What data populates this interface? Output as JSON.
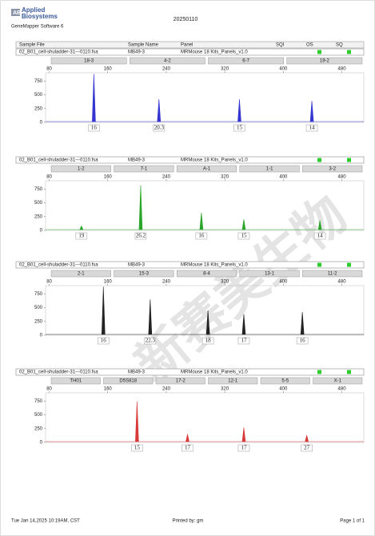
{
  "header": {
    "brand_line1": "Applied",
    "brand_line2": "Biosystems",
    "software": "GeneMapper Software 6",
    "date": "20250110"
  },
  "columns": [
    "Sample File",
    "Sample Name",
    "Panel",
    "SQI",
    "OS",
    "SQ"
  ],
  "watermark": "新赛美生物",
  "chart_data": [
    {
      "type": "peaks",
      "sample_file": "02_B01_cell-shuladder-31---0110.fsa",
      "sample_name": "MB49-3",
      "panel": "MRMouse 18 Kits_Panels_v1.0",
      "markers": [
        "18-3",
        "4-2",
        "6-7",
        "19-2"
      ],
      "color": "#3434d0",
      "xlim": [
        75,
        510
      ],
      "xticks": [
        80,
        160,
        240,
        320,
        400,
        480
      ],
      "ylim": [
        0,
        900
      ],
      "yticks": [
        0,
        250,
        500,
        750
      ],
      "x": [
        141,
        230,
        340,
        439
      ],
      "values": [
        880,
        420,
        420,
        390
      ],
      "alleles": [
        "16",
        "20.3",
        "15",
        "14"
      ]
    },
    {
      "type": "peaks",
      "sample_file": "02_B01_cell-shuladder-31---0110.fsa",
      "sample_name": "MB49-3",
      "panel": "MRMouse 18 Kits_Panels_v1.0",
      "markers": [
        "1-2",
        "7-1",
        "A-1",
        "1-1",
        "3-2"
      ],
      "color": "#2aa52a",
      "xlim": [
        75,
        510
      ],
      "xticks": [
        80,
        160,
        240,
        320,
        400,
        480
      ],
      "ylim": [
        0,
        900
      ],
      "yticks": [
        0,
        250,
        500,
        750
      ],
      "x": [
        124,
        205,
        288,
        346,
        450
      ],
      "values": [
        80,
        820,
        320,
        200,
        180
      ],
      "alleles": [
        "19",
        "26.2",
        "16",
        "15",
        "14"
      ]
    },
    {
      "type": "peaks",
      "sample_file": "02_B01_cell-shuladder-31---0110.fsa",
      "sample_name": "MB49-3",
      "panel": "MRMouse 18 Kits_Panels_v1.0",
      "markers": [
        "2-1",
        "15-3",
        "8-4",
        "13-1",
        "11-2"
      ],
      "color": "#222222",
      "xlim": [
        75,
        510
      ],
      "xticks": [
        80,
        160,
        240,
        320,
        400,
        480
      ],
      "ylim": [
        0,
        900
      ],
      "yticks": [
        0,
        250,
        500,
        750
      ],
      "x": [
        154,
        218,
        297,
        346,
        426
      ],
      "values": [
        880,
        650,
        450,
        380,
        420
      ],
      "alleles": [
        "16",
        "22.3",
        "18",
        "17",
        "16"
      ]
    },
    {
      "type": "peaks",
      "sample_file": "02_B01_cell-shuladder-31---0110.fsa",
      "sample_name": "MB49-3",
      "panel": "MRMouse 18 Kits_Panels_v1.0",
      "markers": [
        "TH01",
        "D5S818",
        "17-2",
        "12-1",
        "5-5",
        "X-1"
      ],
      "color": "#d83a3a",
      "xlim": [
        75,
        510
      ],
      "xticks": [
        80,
        160,
        240,
        320,
        400,
        480
      ],
      "ylim": [
        0,
        900
      ],
      "yticks": [
        0,
        250,
        500,
        750
      ],
      "x": [
        200,
        269,
        346,
        432
      ],
      "values": [
        740,
        150,
        270,
        130
      ],
      "alleles": [
        "15",
        "17",
        "17",
        "27"
      ]
    }
  ],
  "footer": {
    "timestamp": "Tue Jan 14,2025 10:19AM, CST",
    "printed_by": "Printed by: gm",
    "page": "Page 1 of 1"
  }
}
